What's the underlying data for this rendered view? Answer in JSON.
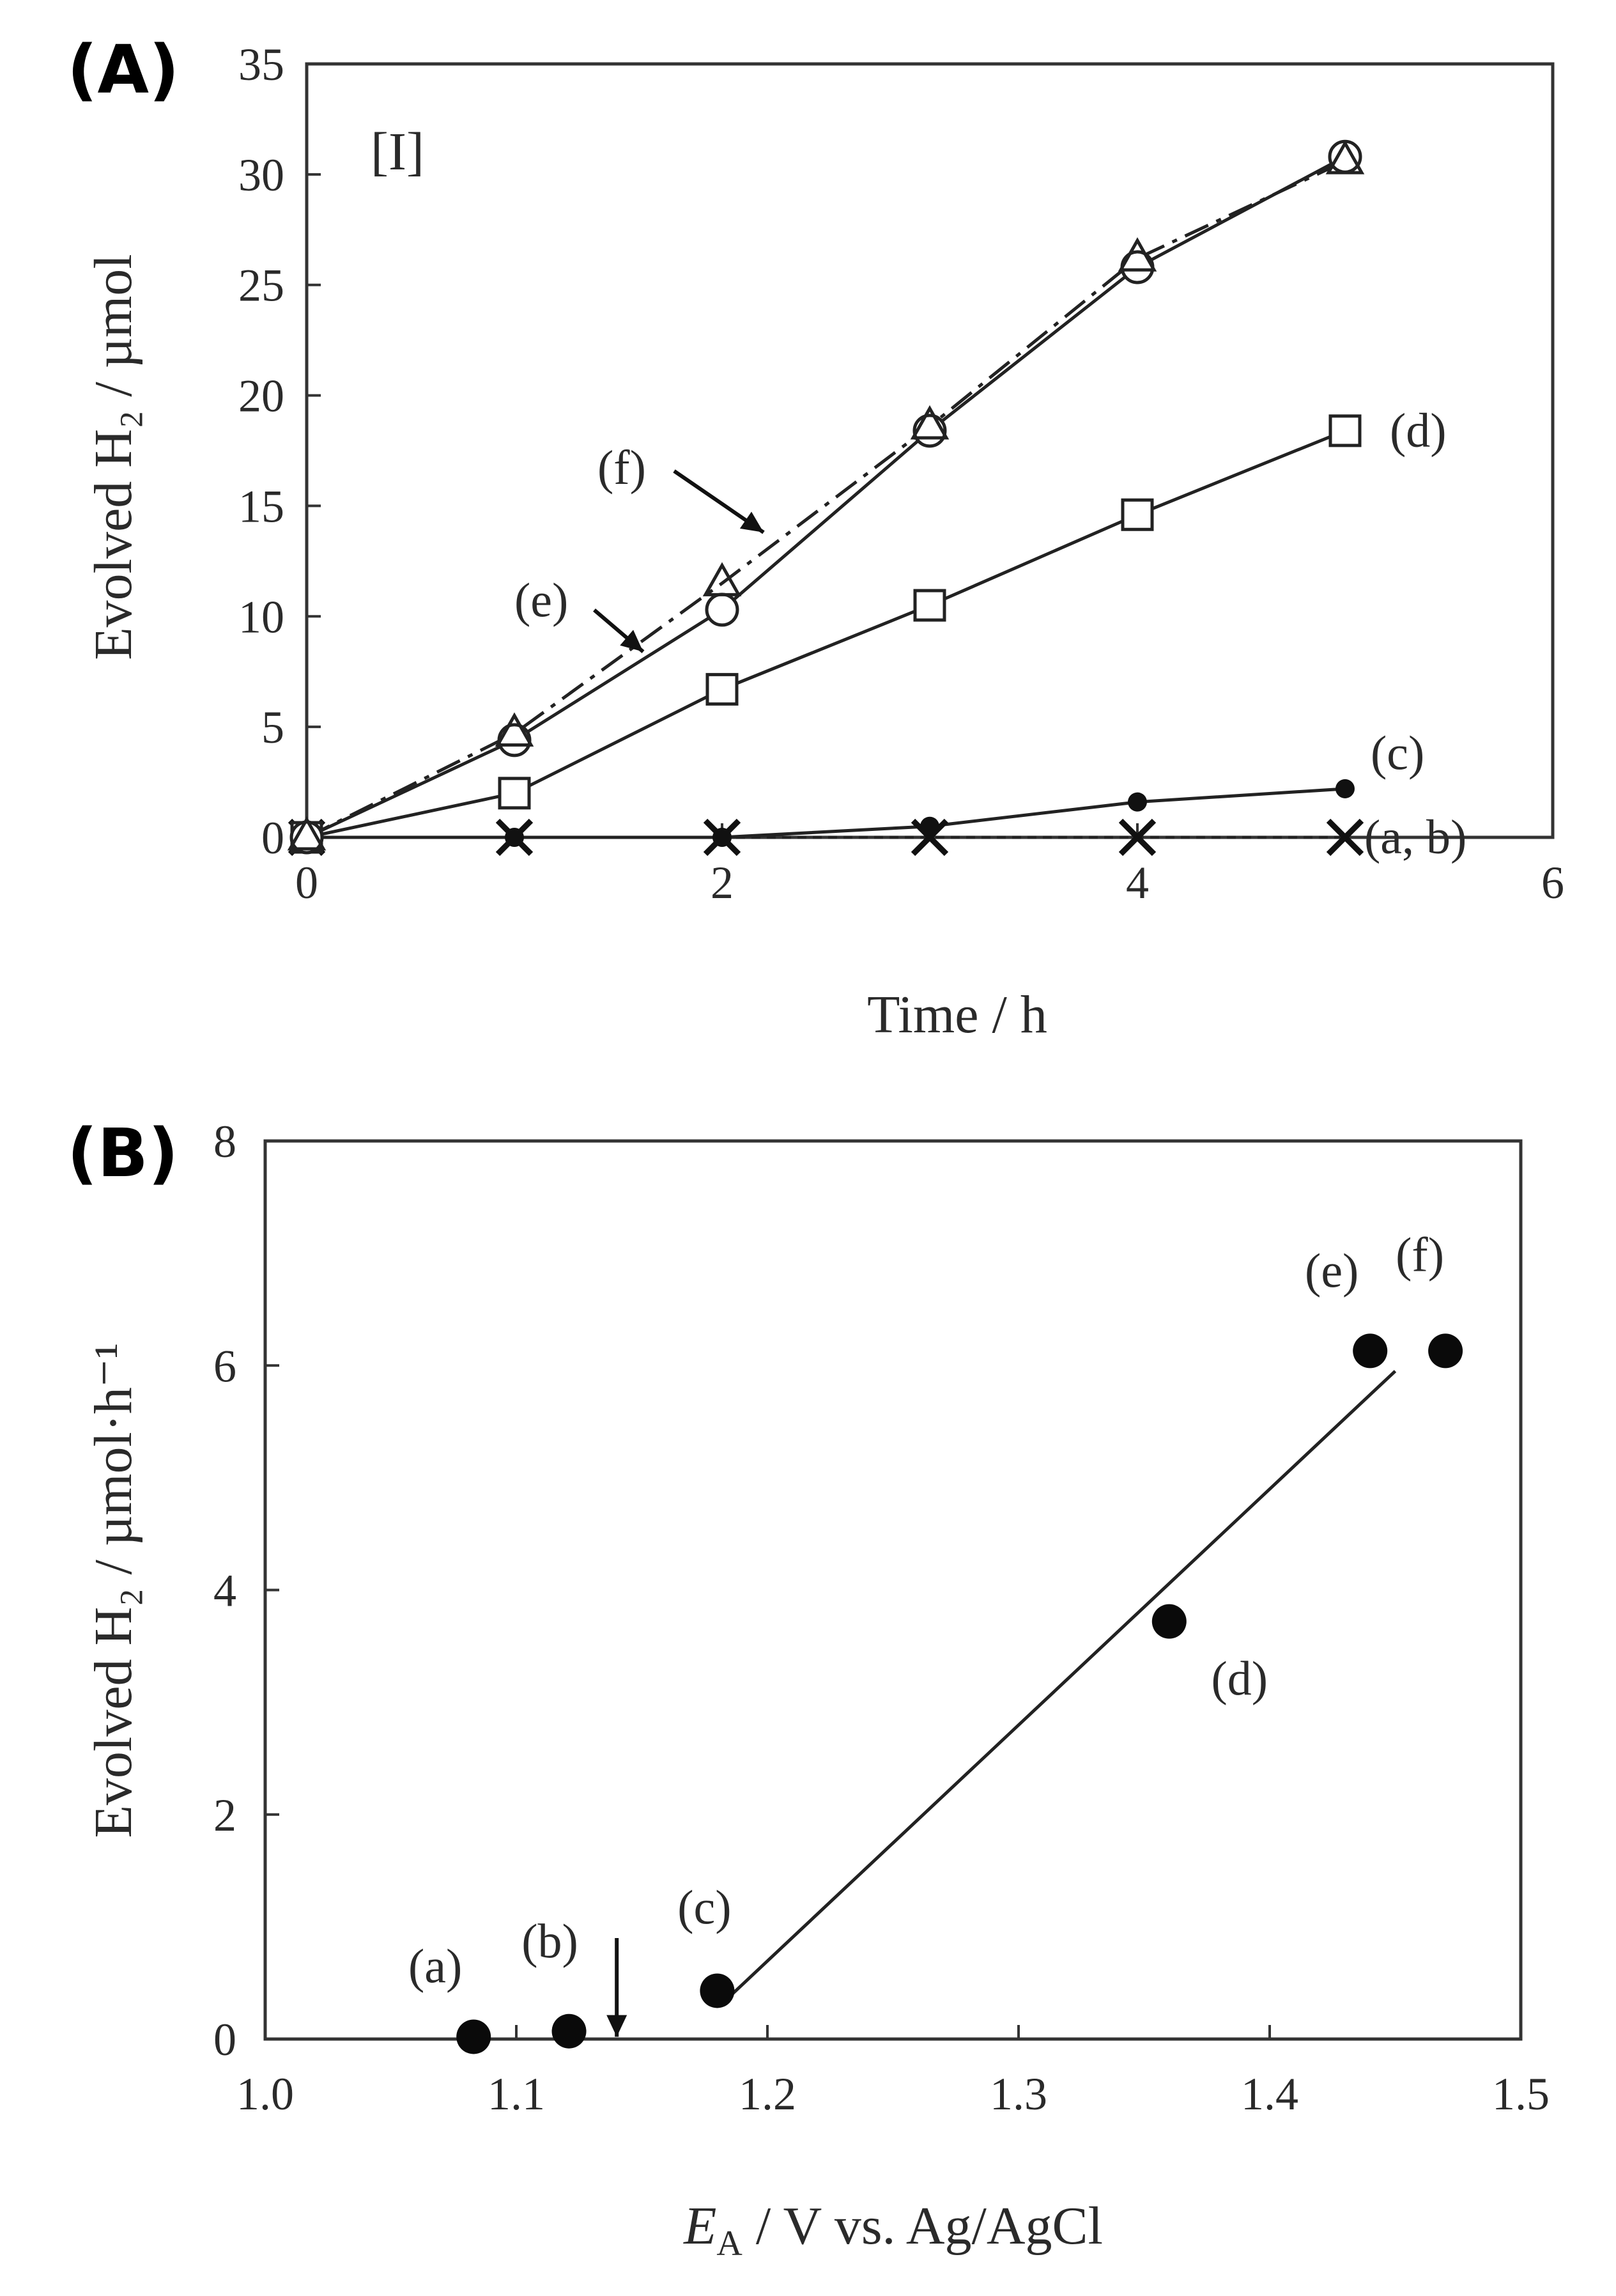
{
  "chart_data": [
    {
      "panel_label": "(A)",
      "inset_label": "[I]",
      "type": "line",
      "xlabel": "Time / h",
      "ylabel": "Evolved H₂ / µmol",
      "xlim": [
        0,
        6
      ],
      "ylim": [
        0,
        35
      ],
      "xticks": [
        "0",
        "2",
        "4",
        "6"
      ],
      "yticks": [
        "0",
        "5",
        "10",
        "15",
        "20",
        "25",
        "30",
        "35"
      ],
      "x": [
        0,
        1,
        2,
        3,
        4,
        5
      ],
      "series": [
        {
          "name": "(a, b)",
          "marker": "cross",
          "line": "dashed",
          "values": [
            0,
            0,
            0,
            0,
            0,
            0
          ]
        },
        {
          "name": "(c)",
          "marker": "filled-circle",
          "line": "solid",
          "values": [
            0,
            0,
            0,
            0.5,
            1.6,
            2.2
          ]
        },
        {
          "name": "(d)",
          "marker": "open-square",
          "line": "solid",
          "values": [
            0,
            2,
            6.7,
            10.5,
            14.6,
            18.4
          ]
        },
        {
          "name": "(e)",
          "marker": "open-circle",
          "line": "solid",
          "values": [
            0,
            4.4,
            10.3,
            18.4,
            25.8,
            30.8
          ]
        },
        {
          "name": "(f)",
          "marker": "open-triangle",
          "line": "dash-dot",
          "values": [
            0,
            4.7,
            11.5,
            18.6,
            26.2,
            30.6
          ]
        }
      ]
    },
    {
      "panel_label": "(B)",
      "type": "scatter",
      "xlabel_symbol": "E",
      "xlabel_sub": "A",
      "xlabel_rest": " / V vs. Ag/AgCl",
      "ylabel": "Evolved H₂ / µmol·h⁻¹",
      "xlim": [
        1.0,
        1.5
      ],
      "ylim": [
        0,
        8
      ],
      "xticks": [
        "1.0",
        "1.1",
        "1.2",
        "1.3",
        "1.4",
        "1.5"
      ],
      "yticks": [
        "0",
        "2",
        "4",
        "6",
        "8"
      ],
      "points": [
        {
          "label": "(a)",
          "x": 1.083,
          "y": 0.02
        },
        {
          "label": "(b)",
          "x": 1.121,
          "y": 0.07
        },
        {
          "label": "(c)",
          "x": 1.18,
          "y": 0.43
        },
        {
          "label": "(d)",
          "x": 1.36,
          "y": 3.72
        },
        {
          "label": "(e)",
          "x": 1.44,
          "y": 6.13
        },
        {
          "label": "(f)",
          "x": 1.47,
          "y": 6.13
        }
      ],
      "fit_line": {
        "x": [
          1.185,
          1.45
        ],
        "y": [
          0.38,
          5.95
        ]
      },
      "onset_arrow_x": 1.14
    }
  ]
}
